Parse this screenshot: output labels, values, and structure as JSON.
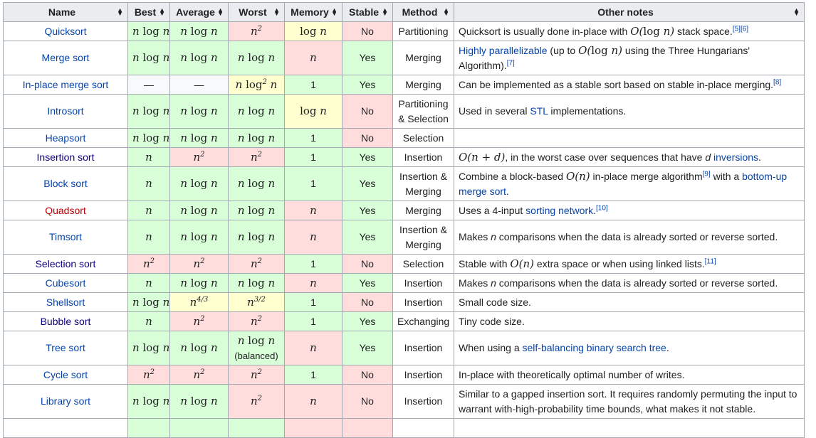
{
  "headers": [
    "Name",
    "Best",
    "Average",
    "Worst",
    "Memory",
    "Stable",
    "Method",
    "Other notes"
  ],
  "rows": [
    {
      "name": "Quicksort",
      "best": "n log n",
      "avg": "n log n",
      "worst": "n^2",
      "mem": "log n",
      "stable": "No",
      "method": "Partitioning",
      "notes": "Quicksort is usually done in-place with O(log n) stack space.[5][6]"
    },
    {
      "name": "Merge sort",
      "best": "n log n",
      "avg": "n log n",
      "worst": "n log n",
      "mem": "n",
      "stable": "Yes",
      "method": "Merging",
      "notes": "Highly parallelizable (up to O(log n) using the Three Hungarians' Algorithm).[7]"
    },
    {
      "name": "In-place merge sort",
      "best": "—",
      "avg": "—",
      "worst": "n log^2 n",
      "mem": "1",
      "stable": "Yes",
      "method": "Merging",
      "notes": "Can be implemented as a stable sort based on stable in-place merging.[8]"
    },
    {
      "name": "Introsort",
      "best": "n log n",
      "avg": "n log n",
      "worst": "n log n",
      "mem": "log n",
      "stable": "No",
      "method": "Partitioning & Selection",
      "notes": "Used in several STL implementations."
    },
    {
      "name": "Heapsort",
      "best": "n log n",
      "avg": "n log n",
      "worst": "n log n",
      "mem": "1",
      "stable": "No",
      "method": "Selection",
      "notes": ""
    },
    {
      "name": "Insertion sort",
      "best": "n",
      "avg": "n^2",
      "worst": "n^2",
      "mem": "1",
      "stable": "Yes",
      "method": "Insertion",
      "notes": "O(n + d), in the worst case over sequences that have d inversions."
    },
    {
      "name": "Block sort",
      "best": "n",
      "avg": "n log n",
      "worst": "n log n",
      "mem": "1",
      "stable": "Yes",
      "method": "Insertion & Merging",
      "notes": "Combine a block-based O(n) in-place merge algorithm[9] with a bottom-up merge sort."
    },
    {
      "name": "Quadsort",
      "best": "n",
      "avg": "n log n",
      "worst": "n log n",
      "mem": "n",
      "stable": "Yes",
      "method": "Merging",
      "notes": "Uses a 4-input sorting network.[10]"
    },
    {
      "name": "Timsort",
      "best": "n",
      "avg": "n log n",
      "worst": "n log n",
      "mem": "n",
      "stable": "Yes",
      "method": "Insertion & Merging",
      "notes": "Makes n comparisons when the data is already sorted or reverse sorted."
    },
    {
      "name": "Selection sort",
      "best": "n^2",
      "avg": "n^2",
      "worst": "n^2",
      "mem": "1",
      "stable": "No",
      "method": "Selection",
      "notes": "Stable with O(n) extra space or when using linked lists.[11]"
    },
    {
      "name": "Cubesort",
      "best": "n",
      "avg": "n log n",
      "worst": "n log n",
      "mem": "n",
      "stable": "Yes",
      "method": "Insertion",
      "notes": "Makes n comparisons when the data is already sorted or reverse sorted."
    },
    {
      "name": "Shellsort",
      "best": "n log n",
      "avg": "n^4/3",
      "worst": "n^3/2",
      "mem": "1",
      "stable": "No",
      "method": "Insertion",
      "notes": "Small code size."
    },
    {
      "name": "Bubble sort",
      "best": "n",
      "avg": "n^2",
      "worst": "n^2",
      "mem": "1",
      "stable": "Yes",
      "method": "Exchanging",
      "notes": "Tiny code size."
    },
    {
      "name": "Tree sort",
      "best": "n log n",
      "avg": "n log n",
      "worst": "n log n (balanced)",
      "mem": "n",
      "stable": "Yes",
      "method": "Insertion",
      "notes": "When using a self-balancing binary search tree."
    },
    {
      "name": "Cycle sort",
      "best": "n^2",
      "avg": "n^2",
      "worst": "n^2",
      "mem": "1",
      "stable": "No",
      "method": "Insertion",
      "notes": "In-place with theoretically optimal number of writes."
    },
    {
      "name": "Library sort",
      "best": "n log n",
      "avg": "n log n",
      "worst": "n^2",
      "mem": "n",
      "stable": "No",
      "method": "Insertion",
      "notes": "Similar to a gapped insertion sort. It requires randomly permuting the input to warrant with-high-probability time bounds, what makes it not stable."
    }
  ],
  "colors": {
    "good": "#d9ffd9",
    "bad": "#ffdddd",
    "mid": "#ffffd0",
    "header": "#eaecf0",
    "link": "#0645ad"
  }
}
